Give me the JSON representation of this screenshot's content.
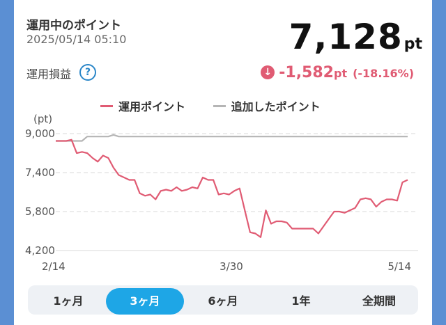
{
  "header": {
    "title": "運用中のポイント",
    "datetime": "2025/05/14 05:10",
    "points_value": "7,128",
    "points_unit": "pt"
  },
  "pl": {
    "label": "運用損益",
    "help_icon": "question-circle-icon",
    "value": "-1,582",
    "unit": "pt",
    "percent": "(-18.16%)",
    "arrow_icon": "down-arrow-circle-icon",
    "color": "#e05b73"
  },
  "legend": {
    "operating": "運用ポイント",
    "added": "追加したポイント"
  },
  "tabs": [
    {
      "label": "1ヶ月",
      "active": false
    },
    {
      "label": "3ヶ月",
      "active": true
    },
    {
      "label": "6ヶ月",
      "active": false
    },
    {
      "label": "1年",
      "active": false
    },
    {
      "label": "全期間",
      "active": false
    }
  ],
  "colors": {
    "operating": "#e05b73",
    "added": "#b5b5b5",
    "active_tab": "#1ea6e6"
  },
  "chart_data": {
    "type": "line",
    "ylabel": "(pt)",
    "ylim": [
      4200,
      9000
    ],
    "yticks": [
      "9,000",
      "7,400",
      "5,800",
      "4,200"
    ],
    "yvals": [
      9000,
      7400,
      5800,
      4200
    ],
    "xticks": [
      "2/14",
      "3/30",
      "5/14"
    ],
    "grid": true,
    "legend_position": "top",
    "series": [
      {
        "name": "運用ポイント",
        "values": [
          8700,
          8700,
          8700,
          8750,
          8200,
          8250,
          8200,
          8000,
          7850,
          8100,
          8000,
          7600,
          7300,
          7200,
          7100,
          7100,
          6550,
          6450,
          6500,
          6300,
          6650,
          6700,
          6650,
          6800,
          6650,
          6700,
          6800,
          6750,
          7200,
          7100,
          7100,
          6500,
          6550,
          6500,
          6650,
          6750,
          5850,
          4950,
          4900,
          4750,
          5850,
          5300,
          5400,
          5400,
          5350,
          5100,
          5100,
          5100,
          5100,
          5100,
          4900,
          5200,
          5500,
          5800,
          5800,
          5750,
          5850,
          5950,
          6300,
          6350,
          6300,
          6000,
          6200,
          6300,
          6300,
          6250,
          7000,
          7100
        ]
      },
      {
        "name": "追加したポイント",
        "values": [
          8700,
          8700,
          8700,
          8700,
          8700,
          8700,
          8880,
          8880,
          8880,
          8880,
          8880,
          8950,
          8880,
          8880,
          8880,
          8880,
          8880,
          8880,
          8880,
          8880,
          8880,
          8880,
          8880,
          8880,
          8880,
          8880,
          8880,
          8880,
          8880,
          8880,
          8880,
          8880,
          8880,
          8880,
          8880,
          8880,
          8880,
          8880,
          8880,
          8880,
          8880,
          8880,
          8880,
          8880,
          8880,
          8880,
          8880,
          8880,
          8880,
          8880,
          8880,
          8880,
          8880,
          8880,
          8880,
          8880,
          8880,
          8880,
          8880,
          8880,
          8880,
          8880,
          8880,
          8880,
          8880,
          8880,
          8880,
          8880
        ]
      }
    ]
  }
}
